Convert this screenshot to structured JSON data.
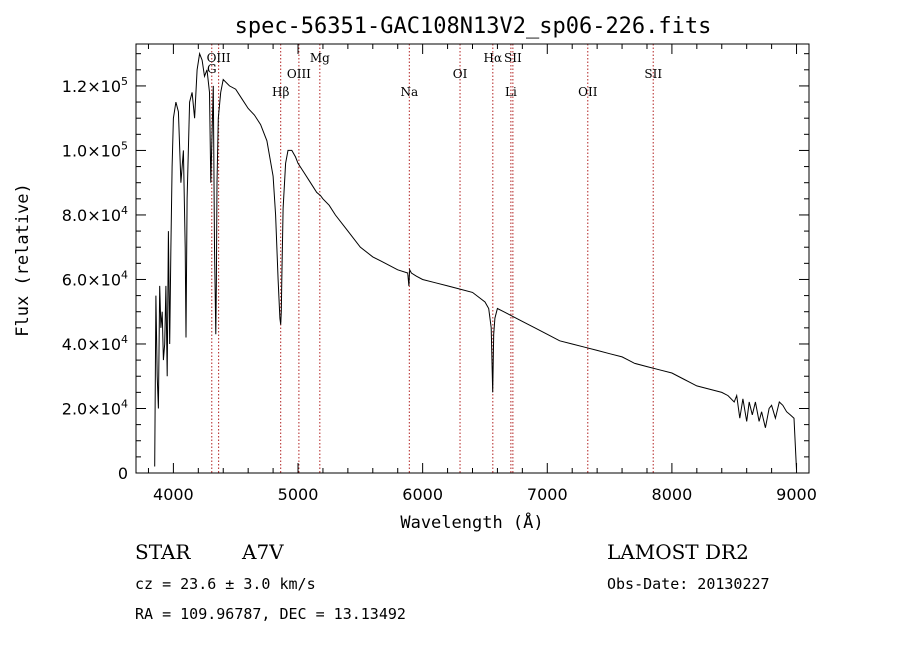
{
  "chart_data": {
    "type": "line",
    "title": "spec-56351-GAC108N13V2_sp06-226.fits",
    "xlabel": "Wavelength (Å)",
    "ylabel": "Flux (relative)",
    "xlim": [
      3700,
      9100
    ],
    "ylim": [
      0,
      133000
    ],
    "x_ticks": [
      4000,
      5000,
      6000,
      7000,
      8000,
      9000
    ],
    "x_tick_labels": [
      "4000",
      "5000",
      "6000",
      "7000",
      "8000",
      "9000"
    ],
    "y_ticks": [
      0,
      20000,
      40000,
      60000,
      80000,
      100000,
      120000
    ],
    "y_tick_labels": [
      {
        "mant": "0",
        "exp": ""
      },
      {
        "mant": "2.0×10",
        "exp": "4"
      },
      {
        "mant": "4.0×10",
        "exp": "4"
      },
      {
        "mant": "6.0×10",
        "exp": "4"
      },
      {
        "mant": "8.0×10",
        "exp": "4"
      },
      {
        "mant": "1.0×10",
        "exp": "5"
      },
      {
        "mant": "1.2×10",
        "exp": "5"
      }
    ],
    "grid": false,
    "series": [
      {
        "color": "#000000",
        "x": [
          3850,
          3860,
          3870,
          3880,
          3890,
          3900,
          3910,
          3920,
          3930,
          3940,
          3950,
          3960,
          3970,
          3980,
          3990,
          4000,
          4020,
          4040,
          4060,
          4080,
          4095,
          4101,
          4110,
          4130,
          4150,
          4170,
          4190,
          4210,
          4230,
          4250,
          4270,
          4290,
          4300,
          4320,
          4330,
          4340,
          4345,
          4350,
          4360,
          4380,
          4400,
          4450,
          4500,
          4550,
          4600,
          4650,
          4700,
          4750,
          4800,
          4820,
          4840,
          4850,
          4855,
          4861,
          4866,
          4870,
          4880,
          4900,
          4920,
          4950,
          4980,
          5000,
          5050,
          5100,
          5150,
          5180,
          5200,
          5250,
          5300,
          5400,
          5500,
          5600,
          5700,
          5800,
          5880,
          5890,
          5893,
          5896,
          5910,
          5950,
          6000,
          6100,
          6200,
          6300,
          6400,
          6500,
          6530,
          6550,
          6562,
          6570,
          6580,
          6600,
          6650,
          6700,
          6800,
          6900,
          7000,
          7100,
          7200,
          7300,
          7400,
          7500,
          7600,
          7650,
          7700,
          7800,
          7900,
          8000,
          8100,
          8200,
          8300,
          8400,
          8450,
          8500,
          8520,
          8545,
          8570,
          8600,
          8620,
          8645,
          8670,
          8700,
          8720,
          8750,
          8780,
          8800,
          8830,
          8862,
          8890,
          8920,
          8950,
          8980,
          9000
        ],
        "y": [
          2000,
          55000,
          30000,
          20000,
          58000,
          45000,
          50000,
          35000,
          40000,
          58000,
          30000,
          75000,
          40000,
          70000,
          95000,
          110000,
          115000,
          112000,
          90000,
          100000,
          70000,
          42000,
          85000,
          115000,
          118000,
          110000,
          125000,
          130000,
          128000,
          123000,
          125000,
          118000,
          90000,
          120000,
          70000,
          43000,
          60000,
          90000,
          110000,
          118000,
          122000,
          120000,
          119000,
          116000,
          113000,
          111000,
          108000,
          103000,
          92000,
          80000,
          60000,
          52000,
          48000,
          46000,
          50000,
          60000,
          82000,
          96000,
          100000,
          100000,
          98000,
          96000,
          93000,
          90000,
          87000,
          86000,
          85000,
          83000,
          80000,
          75000,
          70000,
          67000,
          65000,
          63000,
          62000,
          58000,
          61000,
          63000,
          62000,
          61000,
          60000,
          59000,
          58000,
          57000,
          56000,
          53000,
          51000,
          45000,
          25000,
          43000,
          48000,
          51000,
          50000,
          49000,
          47000,
          45000,
          43000,
          41000,
          40000,
          39000,
          38000,
          37000,
          36000,
          35000,
          34000,
          33000,
          32000,
          31000,
          29000,
          27000,
          26000,
          25000,
          24000,
          22000,
          24000,
          17000,
          23000,
          16000,
          22000,
          18000,
          22000,
          16000,
          19000,
          14000,
          20000,
          21000,
          17000,
          22000,
          21000,
          19000,
          18000,
          17000,
          1000
        ]
      }
    ],
    "annotations": [
      {
        "label": "G",
        "x": 4308,
        "row": "G"
      },
      {
        "label": "OIII",
        "x": 4363,
        "row": "top"
      },
      {
        "label": "Hβ",
        "x": 4861,
        "row": "low"
      },
      {
        "label": "OIII",
        "x": 5007,
        "row": "mid"
      },
      {
        "label": "Mg",
        "x": 5175,
        "row": "top"
      },
      {
        "label": "Na",
        "x": 5893,
        "row": "low"
      },
      {
        "label": "OI",
        "x": 6300,
        "row": "mid"
      },
      {
        "label": "Hα",
        "x": 6563,
        "row": "top"
      },
      {
        "label": "SII",
        "x": 6724,
        "row": "top"
      },
      {
        "label": "Li",
        "x": 6708,
        "row": "low"
      },
      {
        "label": "OII",
        "x": 7325,
        "row": "low"
      },
      {
        "label": "SII",
        "x": 7850,
        "row": "mid"
      }
    ],
    "annotation_line_color": "#b22222"
  },
  "info": {
    "object_class": "STAR",
    "subclass": "A7V",
    "survey": "LAMOST DR2",
    "redshift": "cz = 23.6 ± 3.0 km/s",
    "obs_date": "Obs-Date: 20130227",
    "coords": "RA = 109.96787, DEC =  13.13492"
  }
}
